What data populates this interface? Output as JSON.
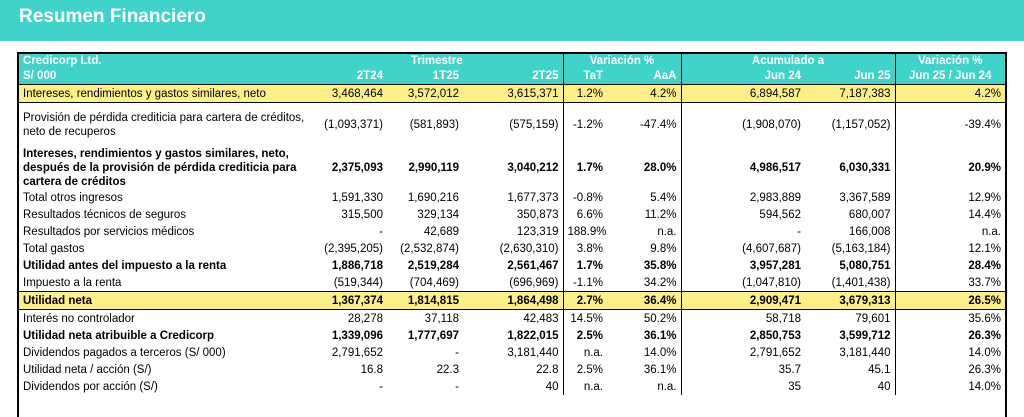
{
  "page_title": "Resumen Financiero",
  "header": {
    "company": "Credicorp Ltd.",
    "currency": "S/ 000",
    "group_trimestre": "Trimestre",
    "group_variacion": "Variación %",
    "group_acumulado": "Acumulado a",
    "group_variacion2": "Variación %",
    "col_2t24": "2T24",
    "col_1t25": "1T25",
    "col_2t25": "2T25",
    "col_tat": "TaT",
    "col_aaa": "AaA",
    "col_jun24": "Jun 24",
    "col_jun25": "Jun 25",
    "col_var": "Jun 25 / Jun 24"
  },
  "rows": [
    {
      "label": "Intereses, rendimientos y gastos similares, neto",
      "v": [
        "3,468,464",
        "3,572,012",
        "3,615,371",
        "1.2%",
        "4.2%",
        "6,894,587",
        "7,187,383",
        "4.2%"
      ]
    },
    {
      "label": "Provisión de pérdida crediticia para cartera de créditos, neto de recuperos",
      "v": [
        "(1,093,371)",
        "(581,893)",
        "(575,159)",
        "-1.2%",
        "-47.4%",
        "(1,908,070)",
        "(1,157,052)",
        "-39.4%"
      ]
    },
    {
      "label": "Intereses, rendimientos y gastos similares, neto, después de la provisión de pérdida crediticia para cartera de créditos",
      "v": [
        "2,375,093",
        "2,990,119",
        "3,040,212",
        "1.7%",
        "28.0%",
        "4,986,517",
        "6,030,331",
        "20.9%"
      ]
    },
    {
      "label": "Total otros ingresos",
      "v": [
        "1,591,330",
        "1,690,216",
        "1,677,373",
        "-0.8%",
        "5.4%",
        "2,983,889",
        "3,367,589",
        "12.9%"
      ]
    },
    {
      "label": "Resultados técnicos de seguros",
      "v": [
        "315,500",
        "329,134",
        "350,873",
        "6.6%",
        "11.2%",
        "594,562",
        "680,007",
        "14.4%"
      ]
    },
    {
      "label": "Resultados por servicios médicos",
      "v": [
        "-",
        "42,689",
        "123,319",
        "188.9%",
        "n.a.",
        "-",
        "166,008",
        "n.a."
      ]
    },
    {
      "label": "Total gastos",
      "v": [
        "(2,395,205)",
        "(2,532,874)",
        "(2,630,310)",
        "3.8%",
        "9.8%",
        "(4,607,687)",
        "(5,163,184)",
        "12.1%"
      ]
    },
    {
      "label": "Utilidad antes del impuesto a la renta",
      "v": [
        "1,886,718",
        "2,519,284",
        "2,561,467",
        "1.7%",
        "35.8%",
        "3,957,281",
        "5,080,751",
        "28.4%"
      ]
    },
    {
      "label": "Impuesto a la renta",
      "v": [
        "(519,344)",
        "(704,469)",
        "(696,969)",
        "-1.1%",
        "34.2%",
        "(1,047,810)",
        "(1,401,438)",
        "33.7%"
      ]
    },
    {
      "label": "Utilidad neta",
      "v": [
        "1,367,374",
        "1,814,815",
        "1,864,498",
        "2.7%",
        "36.4%",
        "2,909,471",
        "3,679,313",
        "26.5%"
      ]
    },
    {
      "label": "Interés no controlador",
      "v": [
        "28,278",
        "37,118",
        "42,483",
        "14.5%",
        "50.2%",
        "58,718",
        "79,601",
        "35.6%"
      ]
    },
    {
      "label": "Utilidad neta atribuible a Credicorp",
      "v": [
        "1,339,096",
        "1,777,697",
        "1,822,015",
        "2.5%",
        "36.1%",
        "2,850,753",
        "3,599,712",
        "26.3%"
      ]
    },
    {
      "label": "Dividendos pagados a terceros (S/ 000)",
      "v": [
        "2,791,652",
        "-",
        "3,181,440",
        "n.a.",
        "14.0%",
        "2,791,652",
        "3,181,440",
        "14.0%"
      ]
    },
    {
      "label": "Utilidad neta / acción (S/)",
      "v": [
        "16.8",
        "22.3",
        "22.8",
        "2.5%",
        "36.1%",
        "35.7",
        "45.1",
        "26.3%"
      ]
    },
    {
      "label": "Dividendos por acción (S/)",
      "v": [
        "-",
        "-",
        "40",
        "n.a.",
        "n.a.",
        "35",
        "40",
        "14.0%"
      ]
    }
  ]
}
